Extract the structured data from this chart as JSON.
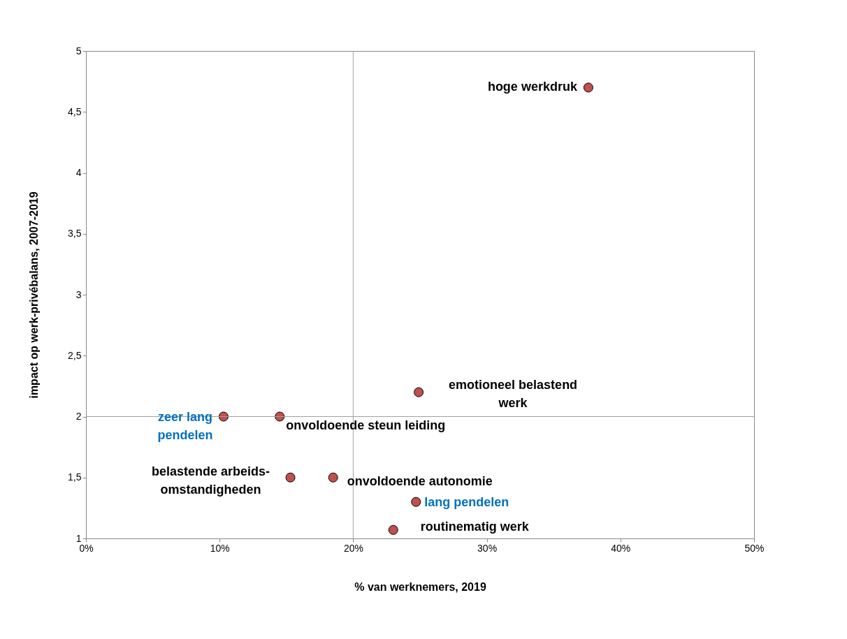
{
  "chart_data": {
    "type": "scatter",
    "xlabel": "% van werknemers, 2019",
    "ylabel": "impact op werk-privébalans, 2007-2019",
    "x": [
      37.6,
      24.9,
      10.3,
      14.5,
      15.3,
      18.5,
      24.7,
      23.0
    ],
    "series": [
      {
        "color": "#c0504d",
        "values": [
          4.7,
          2.2,
          2.0,
          2.0,
          1.5,
          1.5,
          1.3,
          1.07
        ]
      }
    ],
    "marker": "circle",
    "xlim": [
      0,
      50
    ],
    "xticks": [
      {
        "value": 0,
        "label": "0%"
      },
      {
        "value": 10,
        "label": "10%"
      },
      {
        "value": 20,
        "label": "20%"
      },
      {
        "value": 30,
        "label": "30%"
      },
      {
        "value": 40,
        "label": "40%"
      },
      {
        "value": 50,
        "label": "50%"
      }
    ],
    "ylim": [
      1,
      5
    ],
    "yticks": [
      1,
      {
        "value": 1.5,
        "label": "1,5"
      },
      2,
      {
        "value": 2.5,
        "label": "2,5"
      },
      3,
      {
        "value": 3.5,
        "label": "3,5"
      },
      4,
      {
        "value": 4.5,
        "label": "4,5"
      },
      5
    ],
    "ref_lines": [
      {
        "axis": "x",
        "value": 20,
        "color": "#a0a0a0"
      },
      {
        "axis": "y",
        "value": 2,
        "color": "#a0a0a0"
      }
    ],
    "annotations": [
      {
        "text": "hoge werkdruk",
        "x": 37.6,
        "y": 4.7
      },
      {
        "text": "emotioneel belastend\nwerk",
        "x": 24.9,
        "y": 2.2
      },
      {
        "text": "zeer lang\npendelen",
        "x": 10.3,
        "y": 2.0
      },
      {
        "text": "onvoldoende steun leiding",
        "x": 14.5,
        "y": 2.0
      },
      {
        "text": "belastende arbeids-\nomstandigheden",
        "x": 15.3,
        "y": 1.5
      },
      {
        "text": "onvoldoende autonomie",
        "x": 18.5,
        "y": 1.5
      },
      {
        "text": "lang pendelen",
        "x": 24.7,
        "y": 1.3
      },
      {
        "text": "routinematig werk",
        "x": 23.0,
        "y": 1.07
      }
    ]
  }
}
